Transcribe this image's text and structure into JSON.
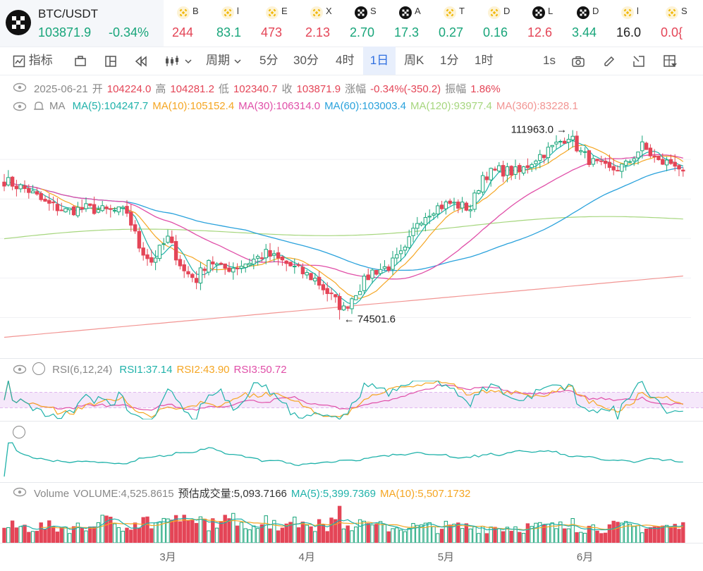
{
  "pair": {
    "name": "BTC/USDT",
    "price": "103871.9",
    "change": "-0.34%"
  },
  "tickers": [
    {
      "icon": "binance-icon",
      "name": "B",
      "value": "244",
      "trend": "down"
    },
    {
      "icon": "binance-icon",
      "name": "l",
      "value": "83.1",
      "trend": "up"
    },
    {
      "icon": "binance-icon",
      "name": "E",
      "value": "473",
      "trend": "down"
    },
    {
      "icon": "binance-icon",
      "name": "X",
      "value": "2.13",
      "trend": "down"
    },
    {
      "icon": "okx-icon",
      "name": "S",
      "value": "2.70",
      "trend": "up"
    },
    {
      "icon": "okx-icon",
      "name": "A",
      "value": "17.3",
      "trend": "up"
    },
    {
      "icon": "binance-icon",
      "name": "T",
      "value": "0.27",
      "trend": "up"
    },
    {
      "icon": "binance-icon",
      "name": "D",
      "value": "0.16",
      "trend": "up"
    },
    {
      "icon": "okx-icon",
      "name": "L",
      "value": "12.6",
      "trend": "down"
    },
    {
      "icon": "okx-icon",
      "name": "D",
      "value": "3.44",
      "trend": "up"
    },
    {
      "icon": "binance-icon",
      "name": "l",
      "value": "16.0",
      "trend": "neutral"
    },
    {
      "icon": "binance-icon",
      "name": "S",
      "value": "0.0{",
      "trend": "down"
    }
  ],
  "toolbar": {
    "indicator": "指标",
    "period": "周期",
    "intervals": [
      "5分",
      "30分",
      "4时",
      "1日",
      "周K",
      "1分",
      "1时"
    ],
    "active_interval": "1日",
    "refresh": "1s"
  },
  "ohlc": {
    "date": "2025-06-21",
    "open_label": "开",
    "open": "104224.0",
    "high_label": "高",
    "high": "104281.2",
    "low_label": "低",
    "low": "102340.7",
    "close_label": "收",
    "close": "103871.9",
    "change_label": "涨幅",
    "change": "-0.34%(-350.2)",
    "amplitude_label": "振幅",
    "amplitude": "1.86%"
  },
  "ma_legend": {
    "label": "MA",
    "items": [
      {
        "text": "MA(5):104247.7",
        "color": "#20b2aa"
      },
      {
        "text": "MA(10):105152.4",
        "color": "#f5a623"
      },
      {
        "text": "MA(30):106314.0",
        "color": "#e04fa8"
      },
      {
        "text": "MA(60):103003.4",
        "color": "#2aa2dc"
      },
      {
        "text": "MA(120):93977.4",
        "color": "#a6d67e"
      },
      {
        "text": "MA(360):83228.1",
        "color": "#f29593"
      }
    ]
  },
  "rsi_legend": {
    "label": "RSI(6,12,24)",
    "items": [
      {
        "text": "RSI1:37.14",
        "color": "#20b2aa"
      },
      {
        "text": "RSI2:43.90",
        "color": "#f5a623"
      },
      {
        "text": "RSI3:50.72",
        "color": "#e04fa8"
      }
    ]
  },
  "volume_legend": {
    "items": [
      {
        "text": "Volume",
        "color": "#888888"
      },
      {
        "text": "VOLUME:4,525.8615",
        "color": "#888888"
      },
      {
        "text": "预估成交量:5,093.7166",
        "color": "#333333"
      },
      {
        "text": "MA(5):5,399.7369",
        "color": "#20b2aa"
      },
      {
        "text": "MA(10):5,507.1732",
        "color": "#f5a623"
      }
    ]
  },
  "chart_data": {
    "type": "candlestick",
    "x_months": [
      "3月",
      "4月",
      "5月",
      "6月"
    ],
    "high_marker": "111963.0",
    "low_marker": "74501.6",
    "ylim": [
      68000,
      114000
    ],
    "up_color": "#18a57a",
    "down_color": "#e44557",
    "close_anchors": [
      [
        0,
        102000
      ],
      [
        6,
        100000
      ],
      [
        10,
        97500
      ],
      [
        15,
        96000
      ],
      [
        20,
        96500
      ],
      [
        25,
        96000
      ],
      [
        30,
        95800
      ],
      [
        33,
        89000
      ],
      [
        36,
        86000
      ],
      [
        40,
        90500
      ],
      [
        44,
        84000
      ],
      [
        47,
        82500
      ],
      [
        50,
        86500
      ],
      [
        53,
        84500
      ],
      [
        57,
        85000
      ],
      [
        60,
        86000
      ],
      [
        64,
        87500
      ],
      [
        68,
        86000
      ],
      [
        72,
        84200
      ],
      [
        76,
        82500
      ],
      [
        80,
        79000
      ],
      [
        83,
        76500
      ],
      [
        86,
        80000
      ],
      [
        90,
        84000
      ],
      [
        94,
        85000
      ],
      [
        98,
        88000
      ],
      [
        101,
        94000
      ],
      [
        105,
        96500
      ],
      [
        109,
        97500
      ],
      [
        114,
        96500
      ],
      [
        117,
        103000
      ],
      [
        121,
        104000
      ],
      [
        126,
        103600
      ],
      [
        130,
        106500
      ],
      [
        134,
        108500
      ],
      [
        138,
        111000
      ],
      [
        141,
        107500
      ],
      [
        144,
        105500
      ],
      [
        148,
        104000
      ],
      [
        152,
        105000
      ],
      [
        156,
        108800
      ],
      [
        160,
        105600
      ],
      [
        164,
        105500
      ],
      [
        166,
        103871.9
      ]
    ]
  }
}
